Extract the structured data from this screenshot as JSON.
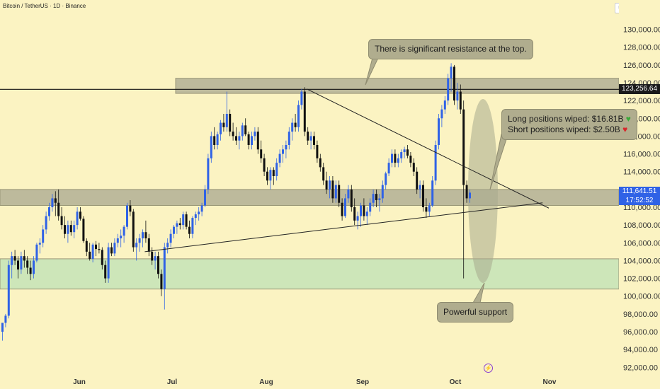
{
  "header": {
    "symbol": "Bitcoin / TetherUS · 1D · Binance",
    "currency": "USDT"
  },
  "price_labels": {
    "resistance_line": "123,256.64",
    "last_price": "111,641.51",
    "countdown": "17:52:52"
  },
  "annotations": {
    "resistance": "There is significant resistance at the top.",
    "long_wiped": "Long positions wiped: $16.81B",
    "short_wiped": "Short positions wiped: $2.50B",
    "support": "Powerful support"
  },
  "colors": {
    "up": "#2f62e6",
    "down": "#111111",
    "background": "#fbf3c2",
    "resistance_zone": "#b7b498",
    "support_zone": "#c9e5b9"
  },
  "chart_data": {
    "type": "candlestick",
    "x_ticks": [
      "Jun",
      "Jul",
      "Aug",
      "Sep",
      "Oct",
      "Nov"
    ],
    "y_ticks": [
      92000,
      94000,
      96000,
      98000,
      100000,
      102000,
      104000,
      106000,
      108000,
      110000,
      112000,
      114000,
      116000,
      118000,
      120000,
      122000,
      124000,
      126000,
      128000,
      130000
    ],
    "ylim": [
      91000,
      131500
    ],
    "horizontal_line": 123256.64,
    "last_price": 111641.51,
    "zones": [
      {
        "label": "resistance",
        "from": 122800,
        "to": 124500
      },
      {
        "label": "mid",
        "from": 110200,
        "to": 112000
      },
      {
        "label": "support",
        "from": 100800,
        "to": 104200
      }
    ],
    "trendlines": [
      {
        "from": [
          "Aug 14",
          123300
        ],
        "to": [
          "Oct 31",
          109900
        ]
      },
      {
        "from": [
          "Jun 22",
          105000
        ],
        "to": [
          "Oct 29",
          110500
        ]
      }
    ],
    "candles": [
      [
        96000,
        97000,
        95000,
        97000
      ],
      [
        97000,
        98000,
        96500,
        97800
      ],
      [
        97800,
        104000,
        97500,
        103500
      ],
      [
        103500,
        105000,
        102000,
        104500
      ],
      [
        104500,
        105200,
        103500,
        104000
      ],
      [
        104000,
        104500,
        102000,
        103000
      ],
      [
        103000,
        105000,
        102500,
        104500
      ],
      [
        104500,
        105200,
        103200,
        104000
      ],
      [
        104000,
        104500,
        102500,
        103200
      ],
      [
        103200,
        104000,
        101800,
        102500
      ],
      [
        102500,
        104500,
        102000,
        104000
      ],
      [
        104000,
        106000,
        103800,
        105800
      ],
      [
        105800,
        106500,
        104800,
        106000
      ],
      [
        106000,
        108000,
        105500,
        107500
      ],
      [
        107500,
        109500,
        107000,
        109000
      ],
      [
        109000,
        110500,
        108500,
        110000
      ],
      [
        110000,
        111500,
        109500,
        111000
      ],
      [
        111000,
        111800,
        109000,
        110500
      ],
      [
        110500,
        112000,
        108500,
        109000
      ],
      [
        109000,
        110000,
        107500,
        108000
      ],
      [
        108000,
        109000,
        106500,
        107000
      ],
      [
        107000,
        108500,
        106000,
        108000
      ],
      [
        108000,
        108500,
        106800,
        107200
      ],
      [
        107200,
        108500,
        106500,
        108000
      ],
      [
        108000,
        110000,
        107500,
        109500
      ],
      [
        109500,
        110000,
        108500,
        108700
      ],
      [
        108700,
        109000,
        106000,
        106200
      ],
      [
        106200,
        106500,
        104500,
        105000
      ],
      [
        105000,
        106000,
        104000,
        104200
      ],
      [
        104200,
        106000,
        103800,
        105800
      ],
      [
        105800,
        106200,
        104500,
        105300
      ],
      [
        105300,
        106000,
        104800,
        105200
      ],
      [
        105200,
        105500,
        103000,
        103500
      ],
      [
        103500,
        104000,
        101500,
        102000
      ],
      [
        102000,
        106000,
        101500,
        105500
      ],
      [
        105500,
        106000,
        104500,
        104800
      ],
      [
        104800,
        106500,
        104500,
        106000
      ],
      [
        106000,
        107000,
        105500,
        106500
      ],
      [
        106500,
        107500,
        105500,
        106800
      ],
      [
        106800,
        108000,
        106000,
        107800
      ],
      [
        107800,
        110500,
        107500,
        110200
      ],
      [
        110200,
        110800,
        109000,
        109500
      ],
      [
        109500,
        109800,
        105000,
        105500
      ],
      [
        105500,
        106500,
        104000,
        106000
      ],
      [
        106000,
        107000,
        105000,
        106500
      ],
      [
        106500,
        107500,
        105500,
        107200
      ],
      [
        107200,
        108500,
        106000,
        106500
      ],
      [
        106500,
        107000,
        104500,
        105000
      ],
      [
        105000,
        105500,
        103500,
        104000
      ],
      [
        104000,
        105000,
        103000,
        104500
      ],
      [
        104500,
        105000,
        102000,
        102500
      ],
      [
        102500,
        103000,
        100000,
        100800
      ],
      [
        100800,
        106000,
        98500,
        105500
      ],
      [
        105500,
        106500,
        104800,
        106000
      ],
      [
        106000,
        107500,
        105500,
        107000
      ],
      [
        107000,
        108000,
        106500,
        107800
      ],
      [
        107800,
        108500,
        107000,
        108200
      ],
      [
        108200,
        108800,
        107500,
        108000
      ],
      [
        108000,
        109500,
        107500,
        109200
      ],
      [
        109200,
        109500,
        107500,
        107800
      ],
      [
        107800,
        108500,
        106500,
        107000
      ],
      [
        107000,
        109000,
        106500,
        108800
      ],
      [
        108800,
        109500,
        108000,
        109200
      ],
      [
        109200,
        110000,
        108500,
        109500
      ],
      [
        109500,
        110500,
        109000,
        110200
      ],
      [
        110200,
        112500,
        110000,
        112000
      ],
      [
        112000,
        116000,
        111500,
        115500
      ],
      [
        115500,
        118500,
        115000,
        118000
      ],
      [
        118000,
        119000,
        116500,
        117000
      ],
      [
        117000,
        118500,
        116500,
        118200
      ],
      [
        118200,
        119800,
        117500,
        119500
      ],
      [
        119500,
        120500,
        118500,
        119000
      ],
      [
        119000,
        123000,
        118500,
        120500
      ],
      [
        120500,
        121000,
        118000,
        118500
      ],
      [
        118500,
        119500,
        117500,
        118000
      ],
      [
        118000,
        119000,
        117000,
        117500
      ],
      [
        117500,
        118500,
        116500,
        118000
      ],
      [
        118000,
        119500,
        117500,
        119200
      ],
      [
        119200,
        120000,
        118000,
        118200
      ],
      [
        118200,
        118500,
        116500,
        117000
      ],
      [
        117000,
        118500,
        116500,
        118000
      ],
      [
        118000,
        119000,
        117500,
        118500
      ],
      [
        118500,
        119000,
        116000,
        116500
      ],
      [
        116500,
        117500,
        115000,
        115500
      ],
      [
        115500,
        116000,
        113500,
        114000
      ],
      [
        114000,
        114500,
        112500,
        113000
      ],
      [
        113000,
        114500,
        112000,
        114200
      ],
      [
        114200,
        114500,
        112500,
        113500
      ],
      [
        113500,
        115500,
        113000,
        115000
      ],
      [
        115000,
        116500,
        114500,
        116000
      ],
      [
        116000,
        117000,
        115000,
        116500
      ],
      [
        116500,
        117500,
        115500,
        117000
      ],
      [
        117000,
        119000,
        116500,
        118500
      ],
      [
        118500,
        120000,
        117500,
        119500
      ],
      [
        119500,
        120500,
        118500,
        119000
      ],
      [
        119000,
        122000,
        118500,
        121500
      ],
      [
        121500,
        123300,
        121000,
        123000
      ],
      [
        123000,
        123500,
        118000,
        118500
      ],
      [
        118500,
        119000,
        117000,
        117500
      ],
      [
        117500,
        118500,
        116500,
        118000
      ],
      [
        118000,
        118500,
        116500,
        117000
      ],
      [
        117000,
        117500,
        115000,
        115500
      ],
      [
        115500,
        116000,
        114000,
        114500
      ],
      [
        114500,
        115000,
        112500,
        113000
      ],
      [
        113000,
        114000,
        111500,
        112000
      ],
      [
        112000,
        113500,
        111000,
        113000
      ],
      [
        113000,
        113500,
        110500,
        111000
      ],
      [
        111000,
        113000,
        110500,
        112500
      ],
      [
        112500,
        113000,
        110000,
        110500
      ],
      [
        110500,
        111000,
        108500,
        109000
      ],
      [
        109000,
        111500,
        108800,
        111000
      ],
      [
        111000,
        112500,
        110500,
        112000
      ],
      [
        112000,
        112500,
        109500,
        110000
      ],
      [
        110000,
        111000,
        108000,
        108500
      ],
      [
        108500,
        109500,
        107500,
        109000
      ],
      [
        109000,
        110500,
        107800,
        110200
      ],
      [
        110200,
        111000,
        108500,
        109000
      ],
      [
        109000,
        110000,
        108000,
        109500
      ],
      [
        109500,
        111000,
        109000,
        110500
      ],
      [
        110500,
        112000,
        110000,
        111500
      ],
      [
        111500,
        112000,
        110000,
        110800
      ],
      [
        110800,
        111500,
        109500,
        111000
      ],
      [
        111000,
        113000,
        110500,
        112500
      ],
      [
        112500,
        114000,
        112000,
        113800
      ],
      [
        113800,
        115500,
        113500,
        115000
      ],
      [
        115000,
        116500,
        114500,
        116000
      ],
      [
        116000,
        116500,
        114500,
        115000
      ],
      [
        115000,
        116000,
        114500,
        115500
      ],
      [
        115500,
        116500,
        115000,
        116200
      ],
      [
        116200,
        116800,
        115500,
        116500
      ],
      [
        116500,
        117000,
        115500,
        115800
      ],
      [
        115800,
        116200,
        114500,
        115000
      ],
      [
        115000,
        115500,
        113500,
        114000
      ],
      [
        114000,
        114500,
        111500,
        112000
      ],
      [
        112000,
        113000,
        111000,
        112500
      ],
      [
        112500,
        113000,
        109500,
        110000
      ],
      [
        110000,
        111000,
        108800,
        109500
      ],
      [
        109500,
        110500,
        109000,
        110200
      ],
      [
        110200,
        113500,
        110000,
        113000
      ],
      [
        113000,
        117500,
        112500,
        117000
      ],
      [
        117000,
        120500,
        116500,
        120000
      ],
      [
        120000,
        121500,
        119000,
        121000
      ],
      [
        121000,
        122500,
        120500,
        122000
      ],
      [
        122000,
        125000,
        121500,
        124500
      ],
      [
        124500,
        126200,
        123000,
        125800
      ],
      [
        125800,
        126000,
        121500,
        122000
      ],
      [
        122000,
        124000,
        121000,
        123000
      ],
      [
        123000,
        123800,
        120500,
        121000
      ],
      [
        121000,
        122000,
        102000,
        112500
      ],
      [
        112500,
        113000,
        110500,
        111000
      ],
      [
        111000,
        112000,
        110500,
        111641.51
      ]
    ]
  }
}
